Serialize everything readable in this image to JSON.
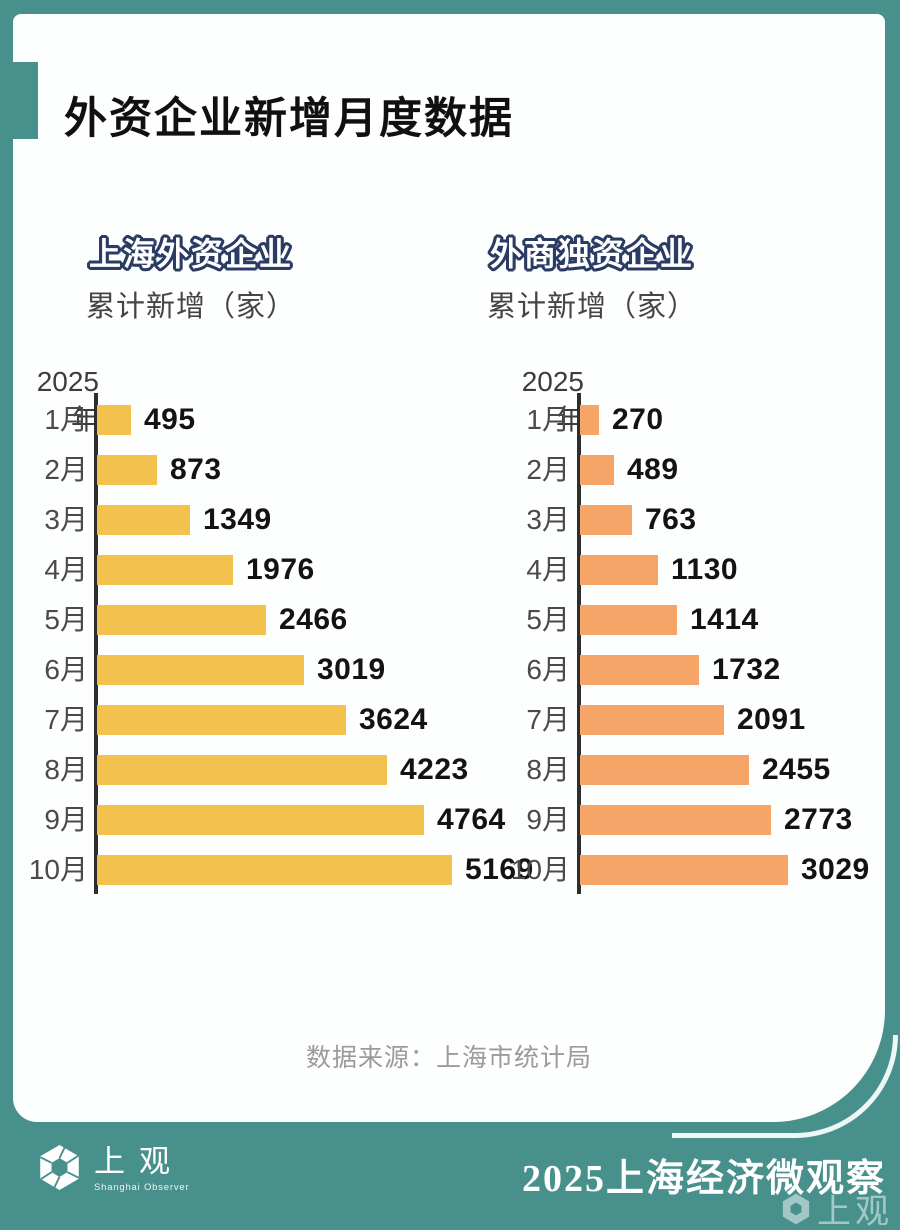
{
  "page": {
    "title": "外资企业新增月度数据",
    "source_note": "数据来源：上海市统计局"
  },
  "footer": {
    "brand_name": "上观",
    "brand_sub": "Shanghai Observer",
    "title": "2025上海经济微观察",
    "watermark": "上观",
    "brand_icon": "aperture-hexagon-icon"
  },
  "colors": {
    "teal_frame": "#47908B",
    "card_white": "#FDFEFE",
    "yellow_bar": "#F2C14E",
    "orange_bar": "#F5A567",
    "badge_yellow": "#F4C148",
    "badge_orange": "#F79E62",
    "badge_outline_navy": "#2A3B64",
    "axis_dark": "#2E2E2E",
    "value_text": "#131313",
    "month_text": "#4A4A4A",
    "source_gray": "#9B9B9B"
  },
  "chart_data": [
    {
      "type": "bar",
      "orientation": "horizontal",
      "title": "上海外资企业",
      "subtitle": "累计新增（家）",
      "year_label": "2025年",
      "categories": [
        "1月",
        "2月",
        "3月",
        "4月",
        "5月",
        "6月",
        "7月",
        "8月",
        "9月",
        "10月"
      ],
      "values": [
        495,
        873,
        1349,
        1976,
        2466,
        3019,
        3624,
        4223,
        4764,
        5169
      ],
      "bar_color": "#F2C14E",
      "xlim": [
        0,
        5169
      ],
      "grid": false,
      "value_labels": "outside-end"
    },
    {
      "type": "bar",
      "orientation": "horizontal",
      "title": "外商独资企业",
      "subtitle": "累计新增（家）",
      "year_label": "2025年",
      "categories": [
        "1月",
        "2月",
        "3月",
        "4月",
        "5月",
        "6月",
        "7月",
        "8月",
        "9月",
        "10月"
      ],
      "values": [
        270,
        489,
        763,
        1130,
        1414,
        1732,
        2091,
        2455,
        2773,
        3029
      ],
      "bar_color": "#F5A567",
      "xlim": [
        0,
        5169
      ],
      "grid": false,
      "value_labels": "outside-end"
    }
  ]
}
